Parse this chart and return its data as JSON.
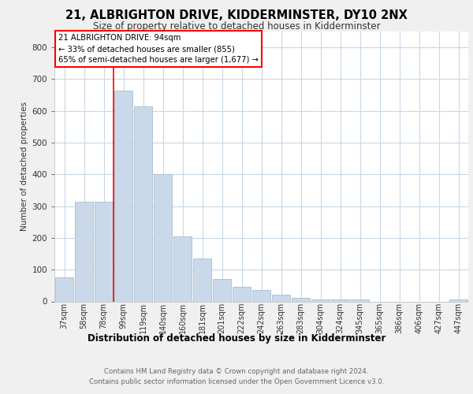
{
  "title": "21, ALBRIGHTON DRIVE, KIDDERMINSTER, DY10 2NX",
  "subtitle": "Size of property relative to detached houses in Kidderminster",
  "xlabel": "Distribution of detached houses by size in Kidderminster",
  "ylabel": "Number of detached properties",
  "bar_labels": [
    "37sqm",
    "58sqm",
    "78sqm",
    "99sqm",
    "119sqm",
    "140sqm",
    "160sqm",
    "181sqm",
    "201sqm",
    "222sqm",
    "242sqm",
    "263sqm",
    "283sqm",
    "304sqm",
    "324sqm",
    "345sqm",
    "365sqm",
    "386sqm",
    "406sqm",
    "427sqm",
    "447sqm"
  ],
  "bar_values": [
    75,
    315,
    315,
    665,
    615,
    400,
    205,
    135,
    70,
    45,
    35,
    20,
    10,
    5,
    5,
    5,
    0,
    0,
    0,
    0,
    7
  ],
  "bar_color": "#c9d9ea",
  "bar_edge_color": "#a8bece",
  "vline_color": "red",
  "vline_pos": 2.5,
  "annotation_title": "21 ALBRIGHTON DRIVE: 94sqm",
  "annotation_line2": "← 33% of detached houses are smaller (855)",
  "annotation_line3": "65% of semi-detached houses are larger (1,677) →",
  "annotation_box_color": "white",
  "annotation_box_edge": "red",
  "ylim": [
    0,
    850
  ],
  "yticks": [
    0,
    100,
    200,
    300,
    400,
    500,
    600,
    700,
    800
  ],
  "footnote1": "Contains HM Land Registry data © Crown copyright and database right 2024.",
  "footnote2": "Contains public sector information licensed under the Open Government Licence v3.0.",
  "bg_color": "#f0f0f0",
  "plot_bg_color": "#ffffff",
  "grid_color": "#c8d8e8"
}
